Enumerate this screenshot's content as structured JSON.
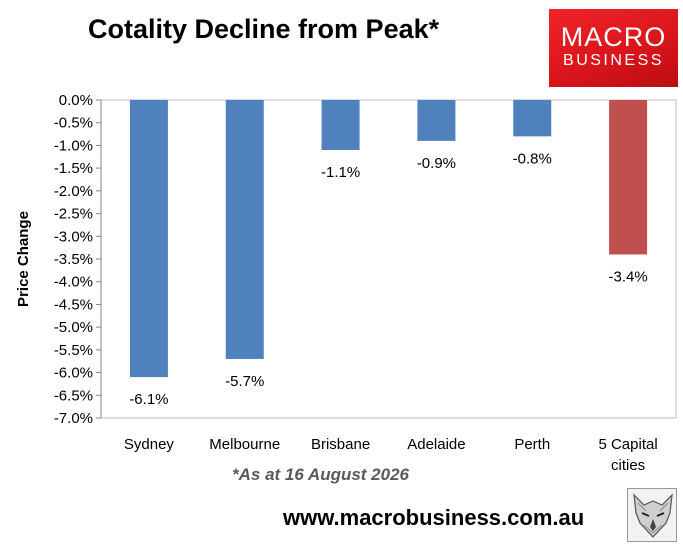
{
  "header": {
    "title": "Cotality Decline from Peak*"
  },
  "logo": {
    "line1": "MACRO",
    "line2": "BUSINESS"
  },
  "footnote": "*As at 16 August 2026",
  "site_url": "www.macrobusiness.com.au",
  "colors": {
    "bar": "#4f81bd",
    "highlight": "#c0504d",
    "logo_red": "#e31e24"
  },
  "chart_data": {
    "type": "bar",
    "title": "Cotality Decline from Peak*",
    "xlabel": "",
    "ylabel": "Price Change",
    "categories": [
      "Sydney",
      "Melbourne",
      "Brisbane",
      "Adelaide",
      "Perth",
      "5 Capital cities"
    ],
    "category_lines": [
      [
        "Sydney"
      ],
      [
        "Melbourne"
      ],
      [
        "Brisbane"
      ],
      [
        "Adelaide"
      ],
      [
        "Perth"
      ],
      [
        "5 Capital",
        "cities"
      ]
    ],
    "values": [
      -6.1,
      -5.7,
      -1.1,
      -0.9,
      -0.8,
      -3.4
    ],
    "data_labels": [
      "-6.1%",
      "-5.7%",
      "-1.1%",
      "-0.9%",
      "-0.8%",
      "-3.4%"
    ],
    "highlight_index": 5,
    "ylim": [
      -7.0,
      0.0
    ],
    "ytick_step": 0.5,
    "ytick_labels": [
      "0.0%",
      "-0.5%",
      "-1.0%",
      "-1.5%",
      "-2.0%",
      "-2.5%",
      "-3.0%",
      "-3.5%",
      "-4.0%",
      "-4.5%",
      "-5.0%",
      "-5.5%",
      "-6.0%",
      "-6.5%",
      "-7.0%"
    ],
    "grid": false,
    "legend": "none"
  }
}
